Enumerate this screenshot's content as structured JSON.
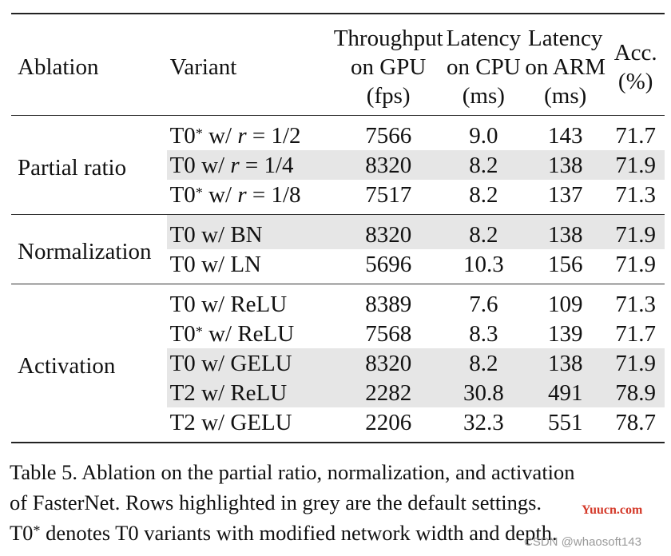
{
  "table": {
    "headers": {
      "ablation": "Ablation",
      "variant": "Variant",
      "gpu": [
        "Throughput",
        "on GPU",
        "(fps)"
      ],
      "cpu": [
        "Latency",
        "on CPU",
        "(ms)"
      ],
      "arm": [
        "Latency",
        "on ARM",
        "(ms)"
      ],
      "acc": [
        "Acc.",
        "(%)"
      ]
    },
    "groups": [
      {
        "label": "Partial ratio",
        "rows": [
          {
            "variant_base": "T0",
            "variant_star": "*",
            "variant_rest": " w/ r = 1/2",
            "gpu": "7566",
            "cpu": "9.0",
            "arm": "143",
            "acc": "71.7",
            "highlight": false
          },
          {
            "variant_base": "T0",
            "variant_star": "",
            "variant_rest": " w/ r = 1/4",
            "gpu": "8320",
            "cpu": "8.2",
            "arm": "138",
            "acc": "71.9",
            "highlight": true
          },
          {
            "variant_base": "T0",
            "variant_star": "*",
            "variant_rest": " w/ r = 1/8",
            "gpu": "7517",
            "cpu": "8.2",
            "arm": "137",
            "acc": "71.3",
            "highlight": false
          }
        ]
      },
      {
        "label": "Normalization",
        "rows": [
          {
            "variant_base": "T0",
            "variant_star": "",
            "variant_rest": " w/ BN",
            "gpu": "8320",
            "cpu": "8.2",
            "arm": "138",
            "acc": "71.9",
            "highlight": true
          },
          {
            "variant_base": "T0",
            "variant_star": "",
            "variant_rest": " w/ LN",
            "gpu": "5696",
            "cpu": "10.3",
            "arm": "156",
            "acc": "71.9",
            "highlight": false
          }
        ]
      },
      {
        "label": "Activation",
        "rows": [
          {
            "variant_base": "T0",
            "variant_star": "",
            "variant_rest": " w/ ReLU",
            "gpu": "8389",
            "cpu": "7.6",
            "arm": "109",
            "acc": "71.3",
            "highlight": false
          },
          {
            "variant_base": "T0",
            "variant_star": "*",
            "variant_rest": " w/ ReLU",
            "gpu": "7568",
            "cpu": "8.3",
            "arm": "139",
            "acc": "71.7",
            "highlight": false
          },
          {
            "variant_base": "T0",
            "variant_star": "",
            "variant_rest": " w/ GELU",
            "gpu": "8320",
            "cpu": "8.2",
            "arm": "138",
            "acc": "71.9",
            "highlight": true
          },
          {
            "variant_base": "T2",
            "variant_star": "",
            "variant_rest": " w/ ReLU",
            "gpu": "2282",
            "cpu": "30.8",
            "arm": "491",
            "acc": "78.9",
            "highlight": true
          },
          {
            "variant_base": "T2",
            "variant_star": "",
            "variant_rest": " w/ GELU",
            "gpu": "2206",
            "cpu": "32.3",
            "arm": "551",
            "acc": "78.7",
            "highlight": false
          }
        ]
      }
    ]
  },
  "caption": {
    "lines": [
      "Table 5. Ablation on the partial ratio, normalization, and activation",
      "of FasterNet. Rows highlighted in grey are the default settings.",
      "T0* denotes T0 variants with modified network width and depth."
    ]
  },
  "watermarks": {
    "site": "Yuucn.com",
    "author": "CSDN @whaosoft143",
    "site_color": "#d43a2a"
  }
}
